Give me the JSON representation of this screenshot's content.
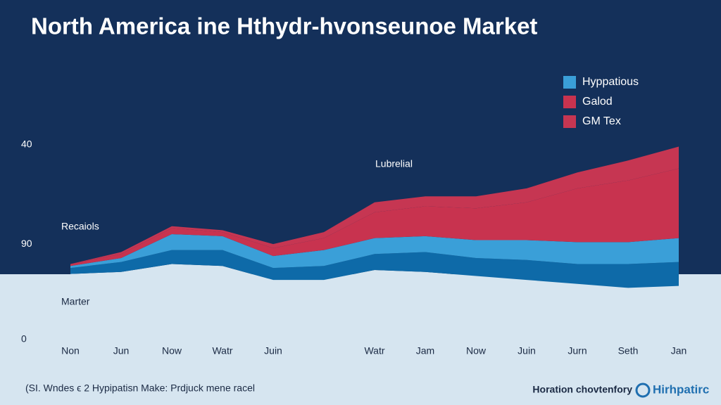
{
  "chart_data": {
    "type": "stacked-area",
    "title": "North America ine Hthydr-hvonseunoe Market",
    "categories": [
      "Non",
      "Jun",
      "Now",
      "Watr",
      "Juin",
      null,
      "Watr",
      "Jam",
      "Now",
      "Juin",
      "Jurn",
      "Seth",
      "Jan"
    ],
    "series": [
      {
        "name": "Marter",
        "color": "#d6e5f0",
        "legend": false,
        "values": [
          33,
          34,
          38,
          37,
          30,
          30,
          35,
          34,
          32,
          30,
          28,
          26,
          27
        ]
      },
      {
        "name": "Recaiols",
        "color": "#0e6aa8",
        "legend": false,
        "values": [
          3,
          5,
          7,
          8,
          6,
          7,
          8,
          10,
          9,
          10,
          10,
          12,
          12
        ]
      },
      {
        "name": "Hyppatious",
        "color": "#3a9fd8",
        "legend": true,
        "values": [
          1,
          2,
          8,
          7,
          6,
          8,
          8,
          8,
          9,
          10,
          11,
          11,
          12
        ]
      },
      {
        "name": "Galod",
        "color": "#c8334f",
        "legend": true,
        "values": [
          1,
          2,
          3,
          2,
          4,
          6,
          13,
          15,
          16,
          19,
          27,
          31,
          35
        ]
      },
      {
        "name": "GM Tex",
        "color": "#c63652",
        "legend": true,
        "values": [
          0,
          1,
          1,
          1,
          2,
          3,
          5,
          5,
          6,
          7,
          8,
          10,
          11
        ]
      }
    ],
    "annotations": [
      "Lubrelial"
    ],
    "ylim": [
      0,
      100
    ],
    "yticks": [
      {
        "value": 98,
        "label": "40"
      },
      {
        "value": 48,
        "label": "90"
      },
      0
    ],
    "grid": false,
    "legend_position": "top-right"
  },
  "footer": {
    "left": "(SI. Wndes ϵ 2 Hypipatisn Make: Prdjuck mene racel",
    "right": "Horation chovtenfory",
    "brand": "Hirhpatirc"
  }
}
